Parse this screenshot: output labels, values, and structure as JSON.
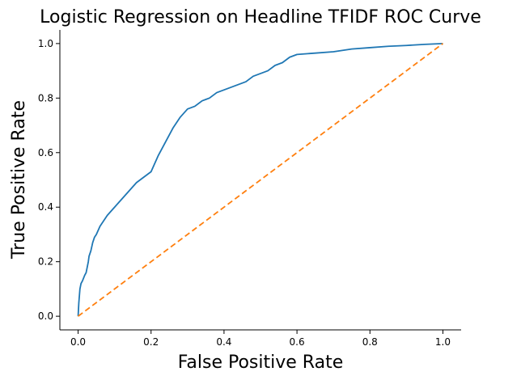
{
  "chart_data": {
    "type": "line",
    "title": "Logistic Regression on Headline TFIDF ROC Curve",
    "xlabel": "False Positive Rate",
    "ylabel": "True Positive Rate",
    "xlim": [
      -0.05,
      1.05
    ],
    "ylim": [
      -0.05,
      1.05
    ],
    "xticks": [
      "0.0",
      "0.2",
      "0.4",
      "0.6",
      "0.8",
      "1.0"
    ],
    "yticks": [
      "0.0",
      "0.2",
      "0.4",
      "0.6",
      "0.8",
      "1.0"
    ],
    "grid": false,
    "series": [
      {
        "color": "#1f77b4",
        "style": "solid",
        "x": [
          0.0,
          0.002,
          0.005,
          0.008,
          0.012,
          0.018,
          0.022,
          0.028,
          0.03,
          0.035,
          0.04,
          0.045,
          0.05,
          0.06,
          0.07,
          0.08,
          0.1,
          0.12,
          0.14,
          0.16,
          0.17,
          0.18,
          0.19,
          0.2,
          0.22,
          0.24,
          0.26,
          0.28,
          0.3,
          0.32,
          0.34,
          0.36,
          0.38,
          0.4,
          0.42,
          0.44,
          0.46,
          0.48,
          0.5,
          0.52,
          0.54,
          0.56,
          0.58,
          0.6,
          0.65,
          0.7,
          0.75,
          0.8,
          0.85,
          0.9,
          0.95,
          1.0
        ],
        "y": [
          0.0,
          0.05,
          0.1,
          0.12,
          0.13,
          0.15,
          0.16,
          0.2,
          0.22,
          0.24,
          0.27,
          0.29,
          0.3,
          0.33,
          0.35,
          0.37,
          0.4,
          0.43,
          0.46,
          0.49,
          0.5,
          0.51,
          0.52,
          0.53,
          0.59,
          0.64,
          0.69,
          0.73,
          0.76,
          0.77,
          0.79,
          0.8,
          0.82,
          0.83,
          0.84,
          0.85,
          0.86,
          0.88,
          0.89,
          0.9,
          0.92,
          0.93,
          0.95,
          0.96,
          0.965,
          0.97,
          0.98,
          0.985,
          0.99,
          0.993,
          0.997,
          1.0
        ]
      },
      {
        "color": "#ff7f0e",
        "style": "dashed",
        "x": [
          0.0,
          1.0
        ],
        "y": [
          0.0,
          1.0
        ]
      }
    ]
  }
}
